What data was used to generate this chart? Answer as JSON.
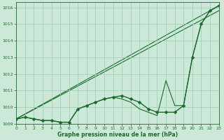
{
  "xlabel": "Graphe pression niveau de la mer (hPa)",
  "background_color": "#cce8d8",
  "grid_color": "#99ccb0",
  "line_color": "#1a6b2a",
  "ylim": [
    1009.0,
    1016.3
  ],
  "xlim": [
    0,
    23
  ],
  "yticks": [
    1009,
    1010,
    1011,
    1012,
    1013,
    1014,
    1015,
    1016
  ],
  "xticks": [
    0,
    1,
    2,
    3,
    4,
    5,
    6,
    7,
    8,
    9,
    10,
    11,
    12,
    13,
    14,
    15,
    16,
    17,
    18,
    19,
    20,
    21,
    22,
    23
  ],
  "series_main": {
    "x": [
      0,
      1,
      2,
      3,
      4,
      5,
      6,
      7,
      8,
      9,
      10,
      11,
      12,
      13,
      14,
      15,
      16,
      17,
      18,
      19,
      20,
      21,
      22,
      23
    ],
    "y": [
      1009.3,
      1009.4,
      1009.3,
      1009.2,
      1009.2,
      1009.1,
      1009.1,
      1009.9,
      1010.1,
      1010.3,
      1010.5,
      1010.6,
      1010.7,
      1010.5,
      1010.3,
      1009.9,
      1009.7,
      1009.7,
      1009.7,
      1010.1,
      1013.0,
      1015.0,
      1015.8,
      1016.1
    ]
  },
  "series_spike": {
    "x": [
      0,
      1,
      2,
      3,
      4,
      5,
      6,
      7,
      8,
      9,
      10,
      11,
      12,
      13,
      14,
      15,
      16,
      17,
      18,
      19,
      20,
      21,
      22,
      23
    ],
    "y": [
      1009.3,
      1009.4,
      1009.3,
      1009.2,
      1009.2,
      1009.1,
      1009.1,
      1009.9,
      1010.1,
      1010.3,
      1010.5,
      1010.6,
      1010.5,
      1010.3,
      1009.9,
      1009.7,
      1009.5,
      1011.6,
      1010.1,
      1010.1,
      1013.0,
      1015.0,
      1015.8,
      1016.1
    ]
  },
  "line_diag1": {
    "x0": 0,
    "y0": 1009.3,
    "x1": 23,
    "y1": 1016.1
  },
  "line_diag2": {
    "x0": 0,
    "y0": 1009.3,
    "x1": 23,
    "y1": 1015.8
  },
  "markersize": 2.5,
  "linewidth_main": 1.0,
  "linewidth_thin": 0.8,
  "xlabel_fontsize": 5.5,
  "tick_fontsize": 4.5
}
